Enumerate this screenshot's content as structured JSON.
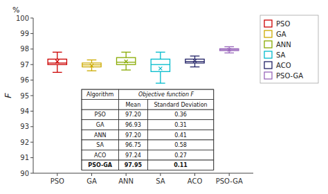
{
  "chart_data": {
    "type": "box",
    "ylabel": "F",
    "annotation": "%",
    "categories": [
      "PSO",
      "GA",
      "ANN",
      "SA",
      "ACO",
      "PSO-GA"
    ],
    "colors": [
      "#cc0000",
      "#ccaa00",
      "#88aa00",
      "#00bbcc",
      "#222266",
      "#9966bb"
    ],
    "whislo": [
      96.5,
      96.6,
      96.65,
      95.8,
      96.85,
      97.75
    ],
    "q1": [
      97.0,
      96.85,
      97.0,
      96.55,
      97.1,
      97.9
    ],
    "med": [
      97.1,
      96.98,
      97.15,
      97.0,
      97.2,
      97.95
    ],
    "q3": [
      97.35,
      97.1,
      97.45,
      97.35,
      97.35,
      98.02
    ],
    "whishi": [
      97.8,
      97.3,
      97.8,
      97.8,
      97.55,
      98.15
    ],
    "mean": [
      97.2,
      96.93,
      97.2,
      96.75,
      97.24,
      97.95
    ],
    "ylim": [
      90,
      100
    ],
    "yticks": [
      90,
      91,
      92,
      93,
      94,
      95,
      96,
      97,
      98,
      99,
      100
    ],
    "grid": false,
    "legend": "right",
    "table": {
      "header_top": "Objective function F",
      "header_cols": [
        "Algorithm",
        "Mean",
        "Standard Deviation"
      ],
      "rows": [
        [
          "PSO",
          "97.20",
          "0.36"
        ],
        [
          "GA",
          "96.93",
          "0.31"
        ],
        [
          "ANN",
          "97.20",
          "0.41"
        ],
        [
          "SA",
          "96.75",
          "0.58"
        ],
        [
          "ACO",
          "97.24",
          "0.27"
        ],
        [
          "PSO-GA",
          "97.95",
          "0.11"
        ]
      ]
    }
  }
}
